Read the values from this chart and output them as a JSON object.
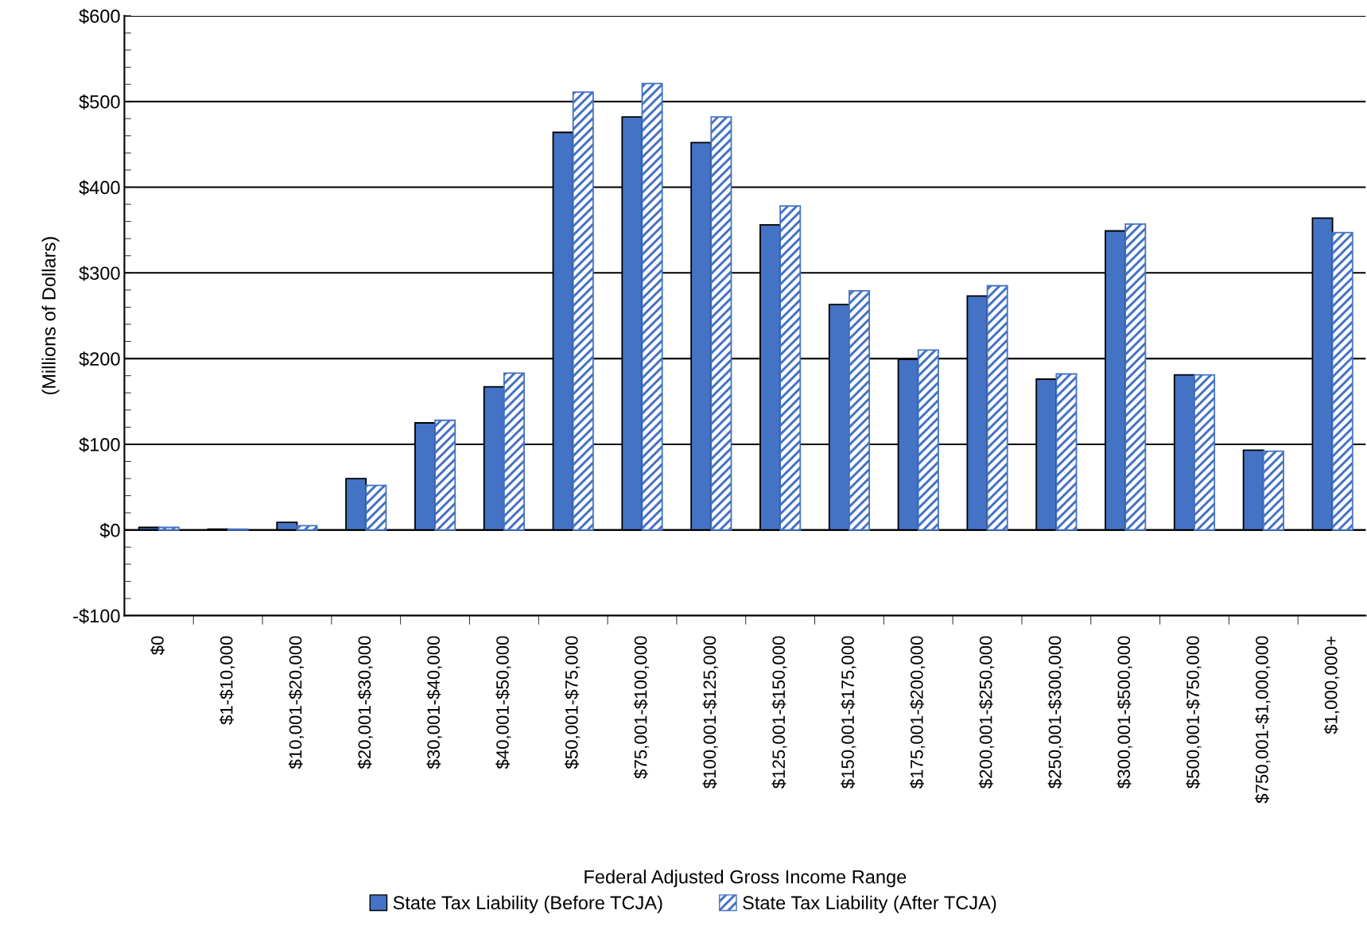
{
  "chart_data": {
    "type": "bar",
    "xlabel": "Federal Adjusted Gross Income Range",
    "ylabel": "(Millions of Dollars)",
    "categories": [
      "$0",
      "$1-$10,000",
      "$10,001-$20,000",
      "$20,001-$30,000",
      "$30,001-$40,000",
      "$40,001-$50,000",
      "$50,001-$75,000",
      "$75,001-$100,000",
      "$100,001-$125,000",
      "$125,001-$150,000",
      "$150,001-$175,000",
      "$175,001-$200,000",
      "$200,001-$250,000",
      "$250,001-$300,000",
      "$300,001-$500,000",
      "$500,001-$750,000",
      "$750,001-$1,000,000",
      "$1,000,000+"
    ],
    "series": [
      {
        "name": "State Tax Liability (Before TCJA)",
        "color": "#4472c4",
        "values": [
          3,
          1,
          9,
          60,
          125,
          167,
          464,
          482,
          452,
          356,
          263,
          199,
          273,
          176,
          349,
          181,
          93,
          364
        ]
      },
      {
        "name": "State Tax Liability (After TCJA)",
        "color": "#4472c4",
        "values": [
          3,
          1,
          5,
          52,
          128,
          183,
          511,
          521,
          482,
          378,
          279,
          210,
          285,
          182,
          357,
          181,
          92,
          347
        ]
      }
    ],
    "ylim": [
      -100,
      600
    ],
    "yticks": [
      {
        "value": -100,
        "label": "-$100"
      },
      {
        "value": 0,
        "label": "$0"
      },
      {
        "value": 100,
        "label": "$100"
      },
      {
        "value": 200,
        "label": "$200"
      },
      {
        "value": 300,
        "label": "$300"
      },
      {
        "value": 400,
        "label": "$400"
      },
      {
        "value": 500,
        "label": "$500"
      },
      {
        "value": 600,
        "label": "$600"
      }
    ],
    "grid": "y",
    "legend": "bottom"
  }
}
